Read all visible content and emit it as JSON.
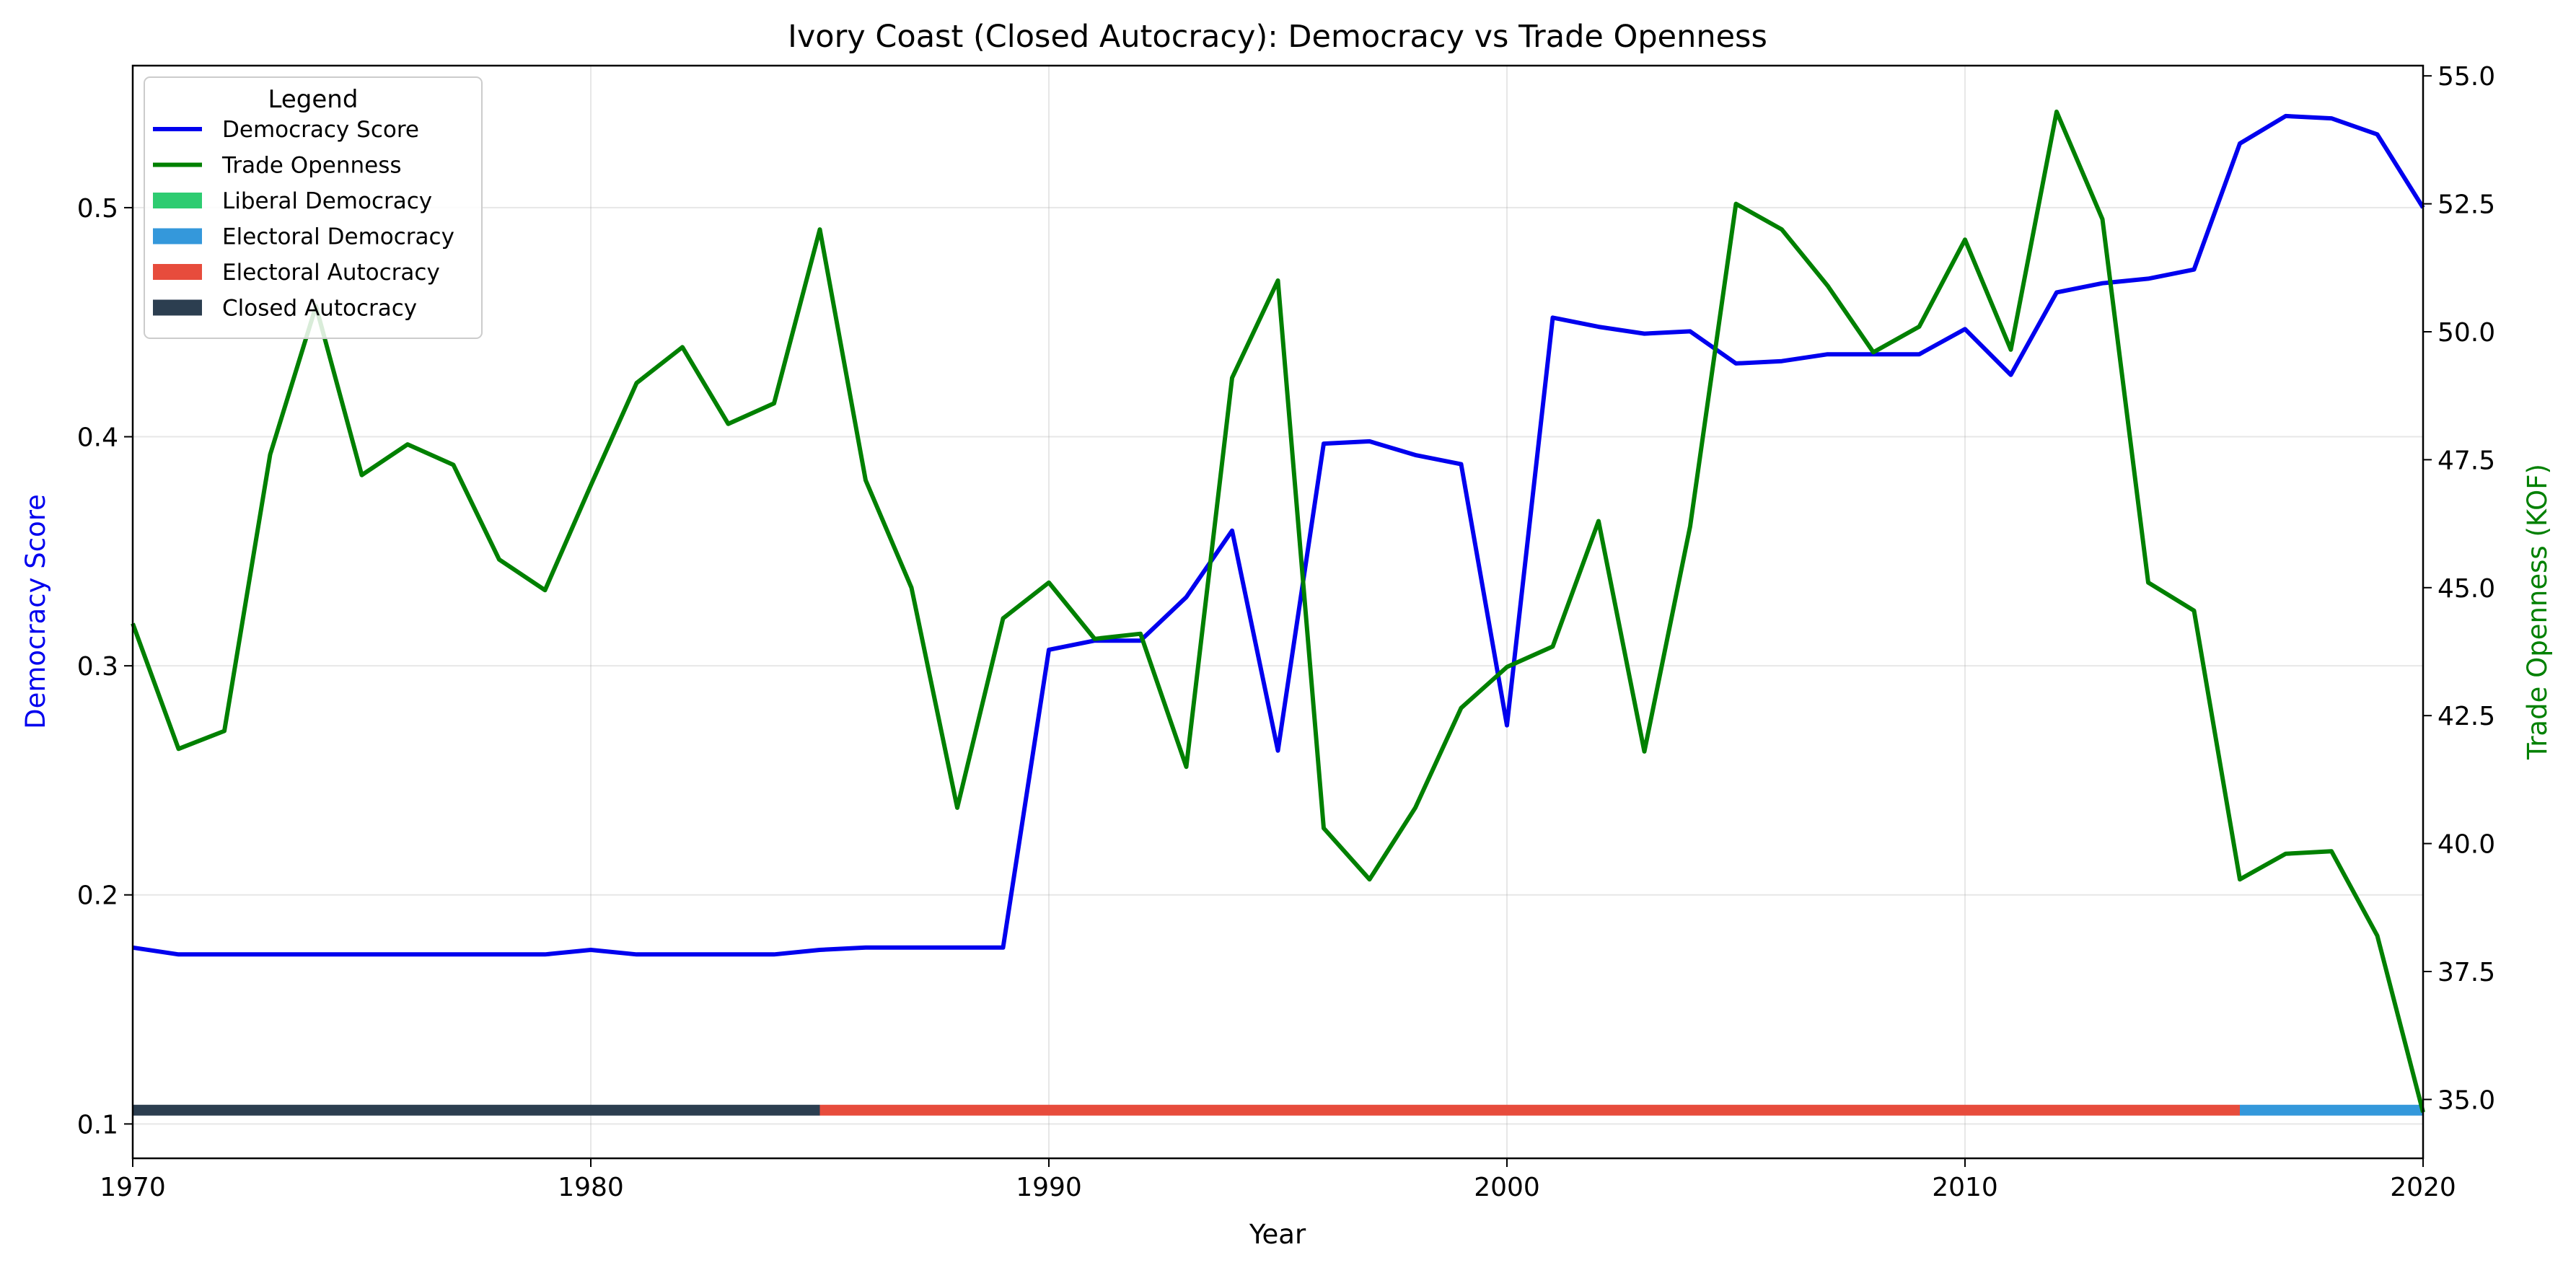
{
  "chart_data": {
    "type": "line",
    "title": "Ivory Coast (Closed Autocracy): Democracy vs Trade Openness",
    "xlabel": "Year",
    "ylabel_left": "Democracy Score",
    "ylabel_right": "Trade Openness (KOF)",
    "xlim": [
      1970,
      2020
    ],
    "ylim_left": [
      0.085,
      0.562
    ],
    "ylim_right": [
      33.85,
      55.2
    ],
    "x_ticks": [
      "1970",
      "1980",
      "1990",
      "2000",
      "2010",
      "2020"
    ],
    "y_left_ticks": [
      "0.1",
      "0.2",
      "0.3",
      "0.4",
      "0.5"
    ],
    "y_right_ticks": [
      "35.0",
      "37.5",
      "40.0",
      "42.5",
      "45.0",
      "47.5",
      "50.0",
      "52.5",
      "55.0"
    ],
    "grid": true,
    "legend": {
      "title": "Legend",
      "position": "top-left",
      "entries": [
        {
          "label": "Democracy Score",
          "kind": "line",
          "color": "#0000ee"
        },
        {
          "label": "Trade Openness",
          "kind": "line",
          "color": "#008000"
        },
        {
          "label": "Liberal Democracy",
          "kind": "patch",
          "color": "#2ecc71"
        },
        {
          "label": "Electoral Democracy",
          "kind": "patch",
          "color": "#3498db"
        },
        {
          "label": "Electoral Autocracy",
          "kind": "patch",
          "color": "#e74c3c"
        },
        {
          "label": "Closed Autocracy",
          "kind": "patch",
          "color": "#2c3e50"
        }
      ]
    },
    "x": [
      1970,
      1971,
      1972,
      1973,
      1974,
      1975,
      1976,
      1977,
      1978,
      1979,
      1980,
      1981,
      1982,
      1983,
      1984,
      1985,
      1986,
      1987,
      1988,
      1989,
      1990,
      1991,
      1992,
      1993,
      1994,
      1995,
      1996,
      1997,
      1998,
      1999,
      2000,
      2001,
      2002,
      2003,
      2004,
      2005,
      2006,
      2007,
      2008,
      2009,
      2010,
      2011,
      2012,
      2013,
      2014,
      2015,
      2016,
      2017,
      2018,
      2019,
      2020
    ],
    "series": [
      {
        "name": "Democracy Score",
        "axis": "left",
        "color": "#0000ee",
        "values": [
          0.177,
          0.174,
          0.174,
          0.174,
          0.174,
          0.174,
          0.174,
          0.174,
          0.174,
          0.174,
          0.176,
          0.174,
          0.174,
          0.174,
          0.174,
          0.176,
          0.177,
          0.177,
          0.177,
          0.177,
          0.307,
          0.311,
          0.311,
          0.33,
          0.359,
          0.263,
          0.397,
          0.398,
          0.392,
          0.388,
          0.274,
          0.452,
          0.448,
          0.445,
          0.446,
          0.432,
          0.433,
          0.436,
          0.436,
          0.436,
          0.447,
          0.427,
          0.463,
          0.467,
          0.469,
          0.473,
          0.528,
          0.54,
          0.539,
          0.532,
          0.5
        ]
      },
      {
        "name": "Trade Openness",
        "axis": "right",
        "color": "#008000",
        "values": [
          44.3,
          41.85,
          42.2,
          47.6,
          50.5,
          47.2,
          47.8,
          47.4,
          45.55,
          44.95,
          47.0,
          49.0,
          49.7,
          48.2,
          48.6,
          52.0,
          47.1,
          45.0,
          40.7,
          44.4,
          45.1,
          44.0,
          44.1,
          41.5,
          49.1,
          51.0,
          40.3,
          39.3,
          40.7,
          42.65,
          43.45,
          43.85,
          46.3,
          41.8,
          46.2,
          52.5,
          52.0,
          50.9,
          49.6,
          50.1,
          51.8,
          49.65,
          54.3,
          52.2,
          45.1,
          44.55,
          39.3,
          39.8,
          39.85,
          38.2,
          34.75
        ]
      }
    ],
    "regime_band": [
      {
        "regime": "Closed Autocracy",
        "start": 1970,
        "end": 1985,
        "color": "#2c3e50"
      },
      {
        "regime": "Electoral Autocracy",
        "start": 1985,
        "end": 2016,
        "color": "#e74c3c"
      },
      {
        "regime": "Electoral Democracy",
        "start": 2016,
        "end": 2020,
        "color": "#3498db"
      }
    ]
  }
}
